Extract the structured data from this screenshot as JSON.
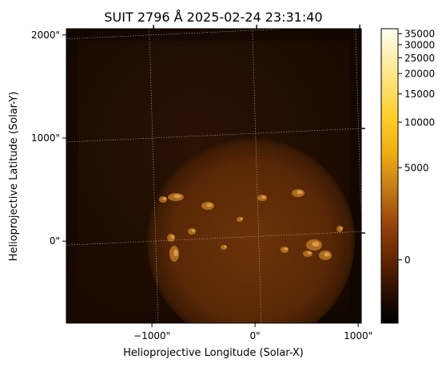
{
  "chart_data": {
    "type": "heatmap",
    "title": "SUIT 2796 Å 2025-02-24 23:31:40",
    "xlabel": "Helioprojective Longitude (Solar-X)",
    "ylabel": "Helioprojective Latitude (Solar-Y)",
    "xlim": [
      -1830,
      1030
    ],
    "ylim": [
      -795,
      2060
    ],
    "x_ticks": [
      {
        "value": -1000,
        "label": "−1000\""
      },
      {
        "value": 0,
        "label": "0\""
      },
      {
        "value": 1000,
        "label": "1000\""
      }
    ],
    "y_ticks": [
      {
        "value": 0,
        "label": "0\""
      },
      {
        "value": 1000,
        "label": "1000\""
      },
      {
        "value": 2000,
        "label": "2000\""
      }
    ],
    "colorbar": {
      "colormap": "sdoaia304-like (black-brown-orange-yellow-white)",
      "range": [
        -3000,
        37500
      ],
      "ticks": [
        {
          "value": 0,
          "label": "0"
        },
        {
          "value": 5000,
          "label": "5000"
        },
        {
          "value": 10000,
          "label": "10000"
        },
        {
          "value": 15000,
          "label": "15000"
        },
        {
          "value": 20000,
          "label": "20000"
        },
        {
          "value": 25000,
          "label": "25000"
        },
        {
          "value": 30000,
          "label": "30000"
        },
        {
          "value": 35000,
          "label": "35000"
        }
      ]
    },
    "solar_disk": {
      "center": [
        0,
        0
      ],
      "radius": 970
    },
    "grid": true
  },
  "colors": {
    "background": "#140800",
    "disk": "#5a2a06",
    "plage": "#c8802a"
  }
}
